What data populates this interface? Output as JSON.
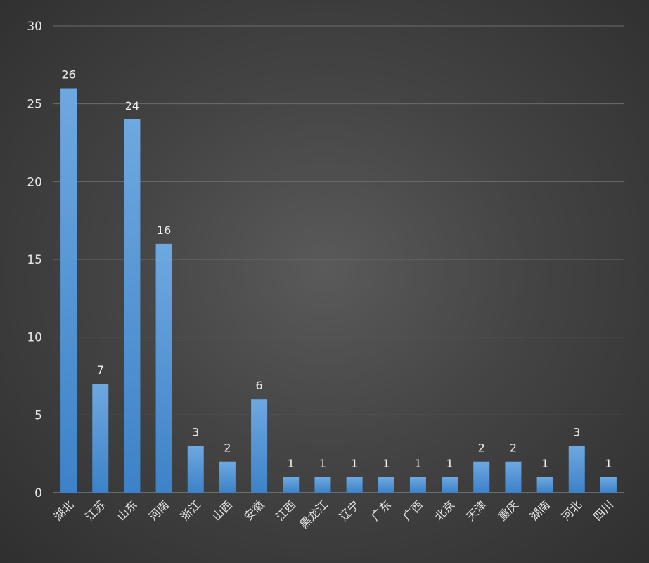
{
  "chart_data": {
    "type": "bar",
    "categories": [
      "湖北",
      "江苏",
      "山东",
      "河南",
      "浙江",
      "山西",
      "安徽",
      "江西",
      "黑龙江",
      "辽宁",
      "广东",
      "广西",
      "北京",
      "天津",
      "重庆",
      "湖南",
      "河北",
      "四川"
    ],
    "values": [
      26,
      7,
      24,
      16,
      3,
      2,
      6,
      1,
      1,
      1,
      1,
      1,
      1,
      2,
      2,
      1,
      3,
      1
    ],
    "title": "",
    "xlabel": "",
    "ylabel": "",
    "ylim": [
      0,
      30
    ],
    "yticks": [
      0,
      5,
      10,
      15,
      20,
      25,
      30
    ],
    "grid": true,
    "legend": "none",
    "data_labels": true,
    "bar_color": "#5b9bd5",
    "background_color": "#3f3f3f"
  }
}
